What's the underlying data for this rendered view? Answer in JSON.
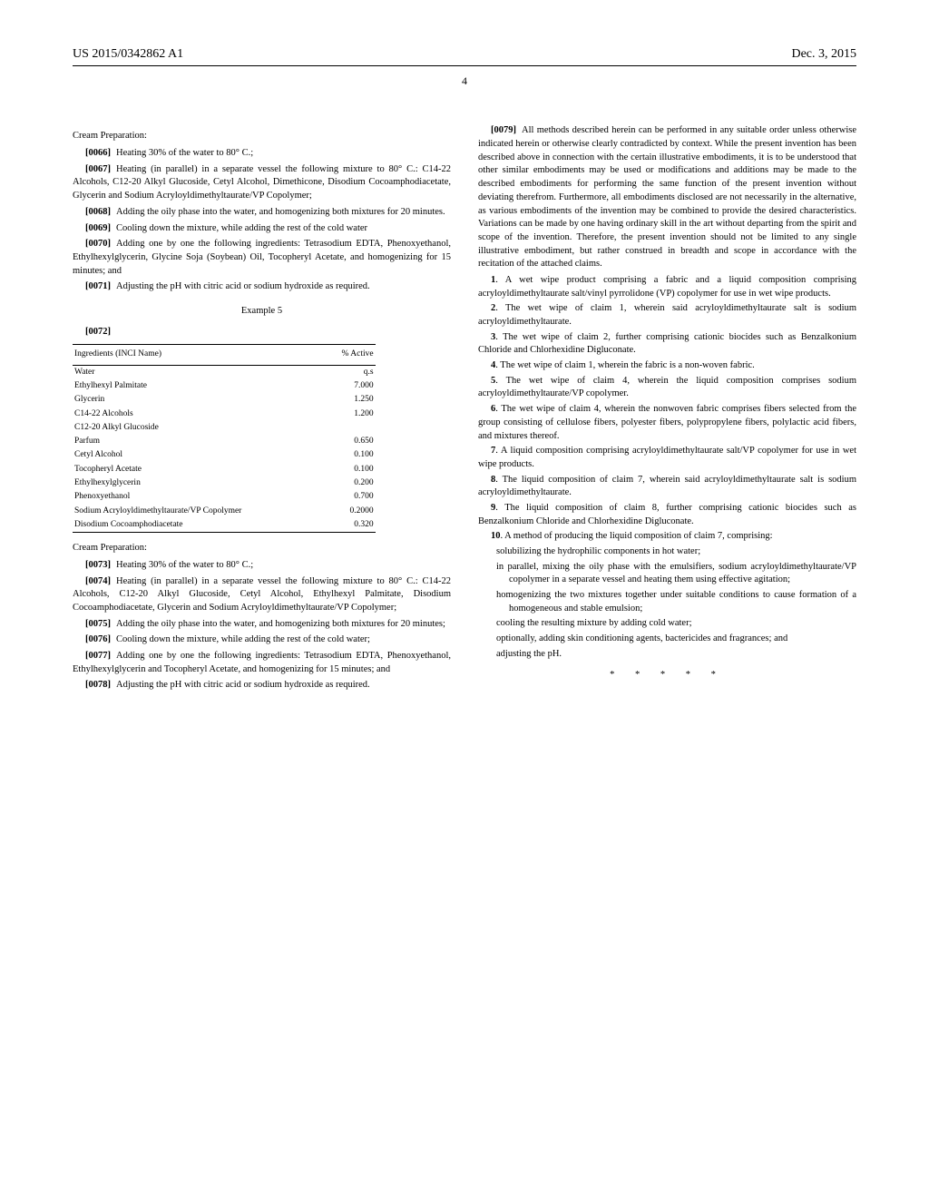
{
  "header": {
    "left": "US 2015/0342862 A1",
    "right": "Dec. 3, 2015"
  },
  "page_number": "4",
  "col1": {
    "cream_prep_title": "Cream Preparation:",
    "paras1": [
      {
        "num": "[0066]",
        "text": "Heating 30% of the water to 80° C.;"
      },
      {
        "num": "[0067]",
        "text": "Heating (in parallel) in a separate vessel the following mixture to 80° C.: C14-22 Alcohols, C12-20 Alkyl Glucoside, Cetyl Alcohol, Dimethicone, Disodium Cocoamphodiacetate, Glycerin and Sodium Acryloyldimethyltaurate/VP Copolymer;"
      },
      {
        "num": "[0068]",
        "text": "Adding the oily phase into the water, and homogenizing both mixtures for 20 minutes."
      },
      {
        "num": "[0069]",
        "text": "Cooling down the mixture, while adding the rest of the cold water"
      },
      {
        "num": "[0070]",
        "text": "Adding one by one the following ingredients: Tetrasodium EDTA, Phenoxyethanol, Ethylhexylglycerin, Glycine Soja (Soybean) Oil, Tocopheryl Acetate, and homogenizing for 15 minutes; and"
      },
      {
        "num": "[0071]",
        "text": "Adjusting the pH with citric acid or sodium hydroxide as required."
      }
    ],
    "example5_label": "Example 5",
    "example5_num": "[0072]",
    "table": {
      "col1_header": "Ingredients (INCI Name)",
      "col2_header": "% Active",
      "rows": [
        [
          "Water",
          "q.s"
        ],
        [
          "Ethylhexyl Palmitate",
          "7.000"
        ],
        [
          "Glycerin",
          "1.250"
        ],
        [
          "C14-22 Alcohols",
          "1.200"
        ],
        [
          "C12-20 Alkyl Glucoside",
          ""
        ],
        [
          "Parfum",
          "0.650"
        ],
        [
          "Cetyl Alcohol",
          "0.100"
        ],
        [
          "Tocopheryl Acetate",
          "0.100"
        ],
        [
          "Ethylhexylglycerin",
          "0.200"
        ],
        [
          "Phenoxyethanol",
          "0.700"
        ],
        [
          "Sodium Acryloyldimethyltaurate/VP Copolymer",
          "0.2000"
        ],
        [
          "Disodium Cocoamphodiacetate",
          "0.320"
        ]
      ]
    },
    "cream_prep_title2": "Cream Preparation:",
    "paras2": [
      {
        "num": "[0073]",
        "text": "Heating 30% of the water to 80° C.;"
      },
      {
        "num": "[0074]",
        "text": "Heating (in parallel) in a separate vessel the following mixture to 80° C.: C14-22 Alcohols, C12-20 Alkyl Glucoside, Cetyl Alcohol, Ethylhexyl Palmitate, Disodium Cocoamphodiacetate, Glycerin and Sodium Acryloyldimethyltaurate/VP Copolymer;"
      },
      {
        "num": "[0075]",
        "text": "Adding the oily phase into the water, and homogenizing both mixtures for 20 minutes;"
      },
      {
        "num": "[0076]",
        "text": "Cooling down the mixture, while adding the rest of the cold water;"
      },
      {
        "num": "[0077]",
        "text": "Adding one by one the following ingredients: Tetrasodium EDTA, Phenoxyethanol, Ethylhexylglycerin and Tocopheryl Acetate, and homogenizing for 15 minutes; and"
      },
      {
        "num": "[0078]",
        "text": "Adjusting the pH with citric acid or sodium hydroxide as required."
      }
    ]
  },
  "col2": {
    "para79": {
      "num": "[0079]",
      "text": "All methods described herein can be performed in any suitable order unless otherwise indicated herein or otherwise clearly contradicted by context. While the present invention has been described above in connection with the certain illustrative embodiments, it is to be understood that other similar embodiments may be used or modifications and additions may be made to the described embodiments for performing the same function of the present invention without deviating therefrom. Furthermore, all embodiments disclosed are not necessarily in the alternative, as various embodiments of the invention may be combined to provide the desired characteristics. Variations can be made by one having ordinary skill in the art without departing from the spirit and scope of the invention. Therefore, the present invention should not be limited to any single illustrative embodiment, but rather construed in breadth and scope in accordance with the recitation of the attached claims."
    },
    "claims": [
      {
        "cnum": "1",
        "text": ". A wet wipe product comprising a fabric and a liquid composition comprising acryloyldimethyltaurate salt/vinyl pyrrolidone (VP) copolymer for use in wet wipe products."
      },
      {
        "cnum": "2",
        "text": ". The wet wipe of claim 1, wherein said acryloyldimethyltaurate salt is sodium acryloyldimethyltaurate."
      },
      {
        "cnum": "3",
        "text": ". The wet wipe of claim 2, further comprising cationic biocides such as Benzalkonium Chloride and Chlorhexidine Digluconate."
      },
      {
        "cnum": "4",
        "text": ". The wet wipe of claim 1, wherein the fabric is a non-woven fabric."
      },
      {
        "cnum": "5",
        "text": ". The wet wipe of claim 4, wherein the liquid composition comprises sodium acryloyldimethyltaurate/VP copolymer."
      },
      {
        "cnum": "6",
        "text": ". The wet wipe of claim 4, wherein the nonwoven fabric comprises fibers selected from the group consisting of cellulose fibers, polyester fibers, polypropylene fibers, polylactic acid fibers, and mixtures thereof."
      },
      {
        "cnum": "7",
        "text": ". A liquid composition comprising acryloyldimethyltaurate salt/VP copolymer for use in wet wipe products."
      },
      {
        "cnum": "8",
        "text": ". The liquid composition of claim 7, wherein said acryloyldimethyltaurate salt is sodium acryloyldimethyltaurate."
      },
      {
        "cnum": "9",
        "text": ". The liquid composition of claim 8, further comprising cationic biocides such as Benzalkonium Chloride and Chlorhexidine Digluconate."
      }
    ],
    "claim10_head": {
      "cnum": "10",
      "text": ". A method of producing the liquid composition of claim 7, comprising:"
    },
    "claim10_subs": [
      "solubilizing the hydrophilic components in hot water;",
      "in parallel, mixing the oily phase with the emulsifiers, sodium acryloyldimethyltaurate/VP copolymer in a separate vessel and heating them using effective agitation;",
      "homogenizing the two mixtures together under suitable conditions to cause formation of a homogeneous and stable emulsion;",
      "cooling the resulting mixture by adding cold water;",
      "optionally, adding skin conditioning agents, bactericides and fragrances; and",
      "adjusting the pH."
    ],
    "stars": "* * * * *"
  }
}
